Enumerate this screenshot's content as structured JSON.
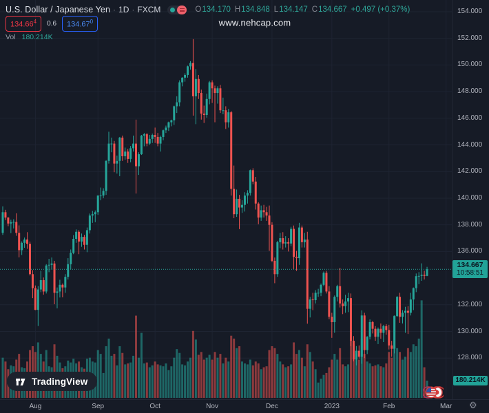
{
  "header": {
    "title": "U.S. Dollar / Japanese Yen",
    "sep1": "·",
    "interval": "1D",
    "sep2": "·",
    "exchange": "FXCM",
    "ohlc": {
      "o_key": "O",
      "o_val": "134.170",
      "h_key": "H",
      "h_val": "134.848",
      "l_key": "L",
      "l_val": "134.147",
      "c_key": "C",
      "c_val": "134.667",
      "change": "+0.497 (+0.37%)"
    },
    "quote": {
      "bid": "134.66",
      "bid_sup": "4",
      "spread": "0.6",
      "ask": "134.67",
      "ask_sup": "0"
    },
    "volume_row": {
      "label": "Vol",
      "value": "180.214K"
    }
  },
  "watermark": "www.nehcap.com",
  "branding": {
    "logo_text": "TradingView"
  },
  "labels": {
    "last_price": "134.667",
    "countdown": "10:58:51",
    "last_volume": "180.214K"
  },
  "icons": {
    "gear": "⚙"
  },
  "axis": {
    "price_ticks": [
      {
        "label": "154.000",
        "value": 154
      },
      {
        "label": "152.000",
        "value": 152
      },
      {
        "label": "150.000",
        "value": 150
      },
      {
        "label": "148.000",
        "value": 148
      },
      {
        "label": "146.000",
        "value": 146
      },
      {
        "label": "144.000",
        "value": 144
      },
      {
        "label": "142.000",
        "value": 142
      },
      {
        "label": "140.000",
        "value": 140
      },
      {
        "label": "138.000",
        "value": 138
      },
      {
        "label": "136.000",
        "value": 136
      },
      {
        "label": "132.000",
        "value": 132
      },
      {
        "label": "130.000",
        "value": 130
      },
      {
        "label": "128.000",
        "value": 128
      }
    ],
    "time_ticks": [
      {
        "label": "Aug",
        "index": 12
      },
      {
        "label": "Sep",
        "index": 35
      },
      {
        "label": "Oct",
        "index": 56
      },
      {
        "label": "Nov",
        "index": 77
      },
      {
        "label": "Dec",
        "index": 99
      },
      {
        "label": "2023",
        "index": 121
      },
      {
        "label": "Feb",
        "index": 142
      },
      {
        "label": "Mar",
        "index": 163
      }
    ]
  },
  "colors": {
    "bg": "#161b26",
    "grid": "#1e2432",
    "up": "#26a69a",
    "down": "#ef5350",
    "axis_text": "#b2b5be",
    "muted_text": "#787b86",
    "bid_red": "#f23645",
    "ask_blue": "#2962ff",
    "label_bg": "#22a398",
    "label_text": "#0b131e",
    "dotted_line": "#26a69a",
    "watermark": "#eceef2"
  },
  "chart_data": {
    "type": "candlestick",
    "title": "U.S. Dollar / Japanese Yen · 1D · FXCM",
    "symbol": "USDJPY",
    "interval": "1D",
    "exchange": "FXCM",
    "legend_position": "top-left",
    "grid": true,
    "ylim": [
      124.9,
      154.9
    ],
    "y_tick_step": 2,
    "x_range": "Jul 2022 – Feb 2023 (daily)",
    "current_price": 134.667,
    "current_volume_k": 180.214,
    "volume_unit": "K",
    "candles_format": [
      "open",
      "high",
      "low",
      "close",
      "volume_k"
    ],
    "candles": [
      [
        137.4,
        139.39,
        137.25,
        138.95,
        420
      ],
      [
        138.95,
        139.13,
        138.36,
        138.55,
        380
      ],
      [
        138.55,
        138.58,
        137.9,
        138.1,
        300
      ],
      [
        138.1,
        138.39,
        137.38,
        138.2,
        340
      ],
      [
        138.2,
        138.42,
        137.73,
        138.22,
        330
      ],
      [
        138.22,
        138.87,
        137.18,
        137.4,
        400
      ],
      [
        137.4,
        137.96,
        135.56,
        136.1,
        460
      ],
      [
        136.1,
        136.76,
        135.74,
        136.65,
        320
      ],
      [
        136.65,
        137.05,
        136.28,
        136.9,
        310
      ],
      [
        136.9,
        137.45,
        136.2,
        136.58,
        380
      ],
      [
        136.58,
        136.75,
        134.2,
        134.3,
        500
      ],
      [
        134.3,
        134.6,
        132.5,
        133.25,
        540
      ],
      [
        133.25,
        133.45,
        131.6,
        131.62,
        480
      ],
      [
        131.62,
        133.4,
        130.41,
        133.15,
        580
      ],
      [
        133.15,
        134.55,
        132.95,
        133.85,
        460
      ],
      [
        133.85,
        134.05,
        132.76,
        133.0,
        380
      ],
      [
        133.0,
        135.05,
        132.85,
        134.95,
        500
      ],
      [
        134.95,
        135.45,
        134.45,
        135.0,
        330
      ],
      [
        135.0,
        135.55,
        134.65,
        135.1,
        320
      ],
      [
        135.1,
        135.3,
        132.04,
        132.9,
        560
      ],
      [
        132.9,
        133.3,
        131.73,
        133.0,
        440
      ],
      [
        133.0,
        133.88,
        132.55,
        133.5,
        370
      ],
      [
        133.5,
        133.6,
        132.56,
        133.3,
        310
      ],
      [
        133.3,
        134.3,
        132.9,
        134.1,
        330
      ],
      [
        134.1,
        135.5,
        133.9,
        135.05,
        390
      ],
      [
        135.05,
        136.15,
        134.65,
        135.9,
        370
      ],
      [
        135.9,
        137.23,
        135.8,
        136.95,
        410
      ],
      [
        136.95,
        137.66,
        136.65,
        137.48,
        360
      ],
      [
        137.48,
        137.6,
        135.8,
        136.75,
        380
      ],
      [
        136.75,
        137.35,
        136.35,
        137.1,
        320
      ],
      [
        137.1,
        137.25,
        136.15,
        136.5,
        305
      ],
      [
        136.5,
        137.8,
        135.95,
        137.6,
        410
      ],
      [
        137.6,
        138.85,
        137.35,
        138.7,
        420
      ],
      [
        138.7,
        139.05,
        138.15,
        138.8,
        380
      ],
      [
        138.8,
        139.08,
        138.2,
        138.95,
        370
      ],
      [
        138.95,
        140.22,
        138.75,
        140.2,
        500
      ],
      [
        140.2,
        140.8,
        139.85,
        140.2,
        460
      ],
      [
        140.2,
        140.75,
        140.0,
        140.55,
        260
      ],
      [
        140.55,
        142.85,
        140.25,
        142.8,
        540
      ],
      [
        142.8,
        144.99,
        142.6,
        144.1,
        620
      ],
      [
        144.1,
        144.55,
        143.45,
        144.1,
        440
      ],
      [
        144.1,
        144.3,
        141.95,
        142.6,
        460
      ],
      [
        142.6,
        143.2,
        141.85,
        142.8,
        340
      ],
      [
        142.8,
        144.6,
        141.65,
        144.55,
        540
      ],
      [
        144.55,
        144.7,
        142.8,
        143.15,
        470
      ],
      [
        143.15,
        143.8,
        142.9,
        143.5,
        350
      ],
      [
        143.5,
        143.7,
        142.65,
        142.95,
        360
      ],
      [
        142.95,
        143.92,
        142.7,
        143.75,
        370
      ],
      [
        143.75,
        144.7,
        143.5,
        144.1,
        440
      ],
      [
        144.1,
        145.9,
        140.35,
        142.4,
        860
      ],
      [
        142.4,
        143.45,
        141.75,
        143.3,
        420
      ],
      [
        143.3,
        144.75,
        143.25,
        144.7,
        680
      ],
      [
        144.7,
        144.9,
        143.9,
        144.8,
        360
      ],
      [
        144.8,
        144.9,
        143.9,
        144.1,
        370
      ],
      [
        144.1,
        144.75,
        144.0,
        144.45,
        320
      ],
      [
        144.45,
        144.85,
        144.15,
        144.75,
        340
      ],
      [
        144.75,
        145.3,
        144.15,
        144.6,
        380
      ],
      [
        144.6,
        144.9,
        143.9,
        144.1,
        350
      ],
      [
        144.1,
        144.7,
        143.5,
        144.6,
        340
      ],
      [
        144.6,
        145.15,
        144.35,
        145.1,
        330
      ],
      [
        145.1,
        145.45,
        144.9,
        145.3,
        360
      ],
      [
        145.3,
        145.75,
        145.05,
        145.7,
        290
      ],
      [
        145.7,
        145.9,
        145.4,
        145.85,
        330
      ],
      [
        145.85,
        146.95,
        145.5,
        146.9,
        420
      ],
      [
        146.9,
        147.65,
        146.4,
        147.2,
        510
      ],
      [
        147.2,
        148.85,
        146.9,
        148.7,
        470
      ],
      [
        148.7,
        149.08,
        148.4,
        149.05,
        350
      ],
      [
        149.05,
        149.38,
        148.75,
        149.25,
        340
      ],
      [
        149.25,
        149.95,
        149.05,
        149.9,
        380
      ],
      [
        149.9,
        150.29,
        149.65,
        150.15,
        420
      ],
      [
        150.15,
        151.94,
        146.2,
        147.65,
        700
      ],
      [
        147.65,
        149.7,
        145.56,
        148.95,
        610
      ],
      [
        148.95,
        149.25,
        147.45,
        147.9,
        450
      ],
      [
        147.9,
        148.15,
        145.9,
        146.35,
        480
      ],
      [
        146.35,
        146.95,
        145.65,
        146.25,
        400
      ],
      [
        146.25,
        147.85,
        146.05,
        147.45,
        420
      ],
      [
        147.45,
        148.8,
        147.05,
        148.7,
        450
      ],
      [
        148.7,
        148.85,
        147.15,
        148.25,
        400
      ],
      [
        148.25,
        148.45,
        145.7,
        147.9,
        480
      ],
      [
        147.9,
        148.4,
        147.1,
        148.25,
        420
      ],
      [
        148.25,
        148.5,
        146.4,
        146.6,
        460
      ],
      [
        146.6,
        147.55,
        146.3,
        146.6,
        360
      ],
      [
        146.6,
        146.9,
        145.2,
        145.7,
        420
      ],
      [
        145.7,
        146.7,
        145.3,
        146.45,
        380
      ],
      [
        146.45,
        146.55,
        140.2,
        140.7,
        650
      ],
      [
        140.7,
        142.45,
        138.5,
        138.8,
        620
      ],
      [
        138.8,
        140.65,
        138.6,
        139.95,
        520
      ],
      [
        139.95,
        140.25,
        137.68,
        139.3,
        540
      ],
      [
        139.3,
        139.85,
        138.9,
        139.5,
        380
      ],
      [
        139.5,
        140.45,
        139.0,
        140.2,
        360
      ],
      [
        140.2,
        140.6,
        139.6,
        140.4,
        350
      ],
      [
        140.4,
        142.15,
        140.2,
        142.1,
        400
      ],
      [
        142.1,
        142.25,
        141.05,
        141.25,
        340
      ],
      [
        141.25,
        141.6,
        139.15,
        139.6,
        380
      ],
      [
        139.6,
        139.7,
        138.05,
        138.55,
        360
      ],
      [
        138.55,
        139.45,
        138.3,
        139.1,
        300
      ],
      [
        139.1,
        139.5,
        138.55,
        138.95,
        320
      ],
      [
        138.95,
        139.35,
        138.3,
        138.7,
        330
      ],
      [
        138.7,
        139.45,
        136.05,
        138.0,
        500
      ],
      [
        138.0,
        138.2,
        135.2,
        135.3,
        540
      ],
      [
        135.3,
        135.55,
        133.62,
        134.3,
        520
      ],
      [
        134.3,
        136.8,
        134.1,
        136.7,
        460
      ],
      [
        136.7,
        137.4,
        136.25,
        137.0,
        380
      ],
      [
        137.0,
        137.45,
        136.15,
        136.6,
        350
      ],
      [
        136.6,
        137.15,
        136.3,
        136.7,
        320
      ],
      [
        136.7,
        137.0,
        136.0,
        136.6,
        330
      ],
      [
        136.6,
        137.85,
        136.4,
        137.7,
        350
      ],
      [
        137.7,
        137.95,
        134.65,
        135.6,
        580
      ],
      [
        135.6,
        136.05,
        134.55,
        135.5,
        460
      ],
      [
        135.5,
        138.15,
        135.0,
        137.8,
        500
      ],
      [
        137.8,
        137.95,
        136.3,
        136.7,
        420
      ],
      [
        136.7,
        137.4,
        136.3,
        136.9,
        330
      ],
      [
        136.9,
        137.48,
        130.58,
        131.7,
        560
      ],
      [
        131.7,
        132.6,
        131.05,
        132.4,
        480
      ],
      [
        132.4,
        132.9,
        131.6,
        132.35,
        380
      ],
      [
        132.35,
        133.1,
        132.1,
        132.9,
        300
      ],
      [
        132.9,
        133.2,
        132.6,
        132.9,
        160
      ],
      [
        132.9,
        133.6,
        132.65,
        133.5,
        200
      ],
      [
        133.5,
        134.5,
        133.4,
        134.4,
        240
      ],
      [
        134.4,
        134.55,
        132.85,
        133.0,
        260
      ],
      [
        133.0,
        133.4,
        130.92,
        131.1,
        320
      ],
      [
        131.1,
        131.4,
        129.52,
        130.7,
        400
      ],
      [
        130.7,
        132.7,
        129.9,
        132.6,
        460
      ],
      [
        132.6,
        133.5,
        132.25,
        133.4,
        400
      ],
      [
        133.4,
        134.78,
        131.8,
        132.1,
        520
      ],
      [
        132.1,
        132.4,
        131.3,
        131.9,
        350
      ],
      [
        131.9,
        132.75,
        131.4,
        132.25,
        330
      ],
      [
        132.25,
        132.9,
        131.45,
        132.5,
        350
      ],
      [
        132.5,
        132.85,
        128.9,
        129.3,
        600
      ],
      [
        129.3,
        129.65,
        127.75,
        127.9,
        560
      ],
      [
        127.9,
        128.9,
        127.45,
        128.55,
        460
      ],
      [
        128.55,
        128.95,
        127.95,
        128.1,
        400
      ],
      [
        128.1,
        131.58,
        127.57,
        131.2,
        620
      ],
      [
        131.2,
        131.4,
        128.0,
        128.6,
        460
      ],
      [
        128.6,
        129.65,
        128.3,
        129.6,
        380
      ],
      [
        129.6,
        130.9,
        129.4,
        130.7,
        360
      ],
      [
        130.7,
        130.8,
        129.85,
        130.2,
        330
      ],
      [
        130.2,
        130.4,
        129.3,
        129.6,
        340
      ],
      [
        129.6,
        130.3,
        129.05,
        130.2,
        350
      ],
      [
        130.2,
        130.6,
        129.45,
        129.9,
        330
      ],
      [
        129.9,
        130.5,
        129.2,
        130.4,
        320
      ],
      [
        130.4,
        130.55,
        129.75,
        130.1,
        360
      ],
      [
        130.1,
        130.5,
        128.65,
        128.95,
        480
      ],
      [
        128.95,
        129.3,
        128.1,
        128.7,
        420
      ],
      [
        128.7,
        131.2,
        128.35,
        131.15,
        860
      ],
      [
        131.15,
        132.65,
        131.1,
        132.6,
        520
      ],
      [
        132.6,
        132.9,
        130.65,
        131.1,
        480
      ],
      [
        131.1,
        131.6,
        130.6,
        131.4,
        400
      ],
      [
        131.4,
        131.85,
        129.9,
        131.55,
        430
      ],
      [
        131.55,
        131.9,
        129.81,
        131.4,
        520
      ],
      [
        131.4,
        132.9,
        131.2,
        132.4,
        480
      ],
      [
        132.4,
        133.3,
        131.6,
        133.25,
        560
      ],
      [
        133.25,
        134.35,
        132.95,
        134.15,
        540
      ],
      [
        134.15,
        134.45,
        133.55,
        134.17,
        620
      ],
      [
        134.17,
        135.11,
        133.8,
        134.25,
        1020
      ],
      [
        134.25,
        134.55,
        133.9,
        134.17,
        320
      ],
      [
        134.17,
        134.848,
        134.147,
        134.667,
        180.214
      ]
    ]
  }
}
